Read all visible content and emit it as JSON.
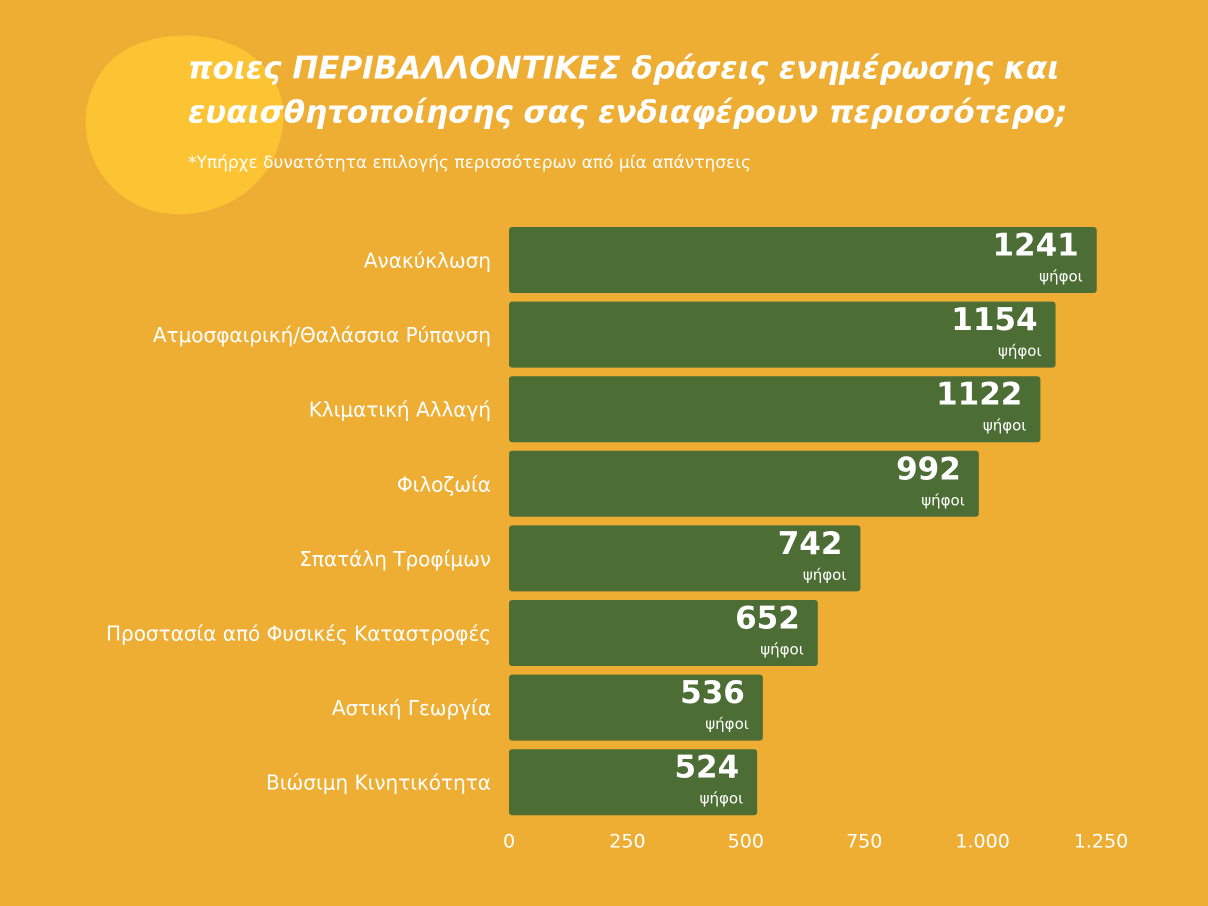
{
  "chart_data": {
    "type": "barh",
    "title": [
      "ποιες ΠΕΡΙΒΑΛΛΟΝΤΙΚΕΣ δράσεις ενημέρωσης και",
      "ευαισθητοποίησης σας ενδιαφέρουν περισσότερο;"
    ],
    "subtitle": "*Υπήρχε δυνατότητα επιλογής περισσότερων από μία απάντησεις",
    "categories": [
      "Ανακύκλωση",
      "Ατμοσφαιρική/Θαλάσσια Ρύπανση",
      "Κλιματική Αλλαγή",
      "Φιλοζωία",
      "Σπατάλη Τροφίμων",
      "Προστασία από Φυσικές Καταστροφές",
      "Αστική Γεωργία",
      "Βιώσιμη Κινητικότητα"
    ],
    "values": [
      1241,
      1154,
      1122,
      992,
      742,
      652,
      536,
      524
    ],
    "value_unit": "ψήφοι",
    "color": "#4c6d34",
    "xlim": [
      0,
      1250
    ],
    "xticks": [
      0,
      250,
      500,
      750,
      {
        "value": 1000,
        "label": "1.000"
      },
      {
        "value": 1250,
        "label": "1.250"
      }
    ]
  }
}
